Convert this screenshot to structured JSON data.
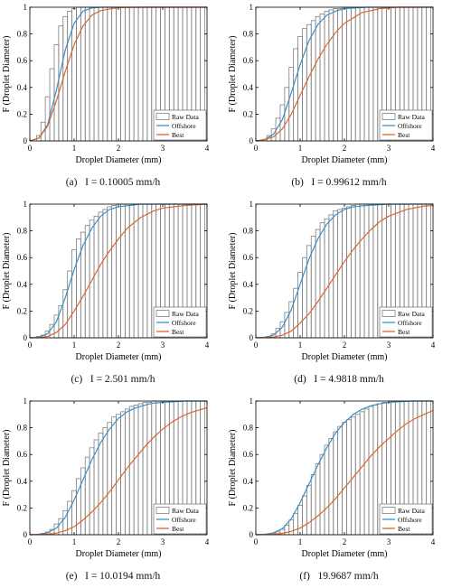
{
  "legend_labels": [
    "Raw Data",
    "Offshore",
    "Best"
  ],
  "colors": {
    "raw": "#808080",
    "offshore": "#3a8fc8",
    "best": "#e0632a",
    "axis": "#000000"
  },
  "chart_data": [
    {
      "type": "bar",
      "caption_letter": "(a)",
      "caption_text": "I = 0.10005 mm/h",
      "xlabel": "Droplet Diameter (mm)",
      "ylabel": "F (Droplet Diameter)",
      "xlim": [
        0,
        4
      ],
      "ylim": [
        0,
        1
      ],
      "xticks": [
        "0",
        "1",
        "2",
        "3",
        "4"
      ],
      "yticks": [
        "0",
        "0.2",
        "0.4",
        "0.6",
        "0.8",
        "1"
      ],
      "legend_position": "bottom-right",
      "grid": false,
      "raw": {
        "bin_width": 0.1,
        "x_start": 0.1,
        "values": [
          0.0,
          0.04,
          0.14,
          0.33,
          0.54,
          0.72,
          0.86,
          0.93,
          0.97,
          0.99,
          1.0,
          1.0,
          1.0,
          1.0,
          1.0,
          1.0,
          1.0,
          1.0,
          1.0,
          1.0,
          1.0,
          1.0,
          1.0,
          1.0,
          1.0,
          1.0,
          1.0,
          1.0,
          1.0,
          1.0,
          1.0,
          1.0,
          1.0,
          1.0,
          1.0,
          1.0,
          1.0,
          1.0,
          1.0
        ]
      },
      "series": [
        {
          "name": "Offshore",
          "x": [
            0.0,
            0.2,
            0.4,
            0.6,
            0.8,
            1.0,
            1.2,
            1.4,
            1.6,
            2.0,
            3.0,
            4.0
          ],
          "y": [
            0.0,
            0.02,
            0.12,
            0.38,
            0.68,
            0.88,
            0.97,
            0.995,
            1.0,
            1.0,
            1.0,
            1.0
          ]
        },
        {
          "name": "Best",
          "x": [
            0.0,
            0.2,
            0.4,
            0.6,
            0.8,
            1.0,
            1.2,
            1.4,
            1.6,
            2.0,
            2.5,
            3.0,
            4.0
          ],
          "y": [
            0.0,
            0.02,
            0.11,
            0.3,
            0.52,
            0.72,
            0.86,
            0.94,
            0.975,
            0.997,
            1.0,
            1.0,
            1.0
          ]
        }
      ]
    },
    {
      "type": "bar",
      "caption_letter": "(b)",
      "caption_text": "I = 0.99612 mm/h",
      "xlabel": "Droplet Diameter (mm)",
      "ylabel": "F (Droplet Diameter)",
      "xlim": [
        0,
        4
      ],
      "ylim": [
        0,
        1
      ],
      "xticks": [
        "0",
        "1",
        "2",
        "3",
        "4"
      ],
      "yticks": [
        "0",
        "0.2",
        "0.4",
        "0.6",
        "0.8",
        "1"
      ],
      "legend_position": "bottom-right",
      "grid": false,
      "raw": {
        "bin_width": 0.1,
        "x_start": 0.1,
        "values": [
          0.0,
          0.01,
          0.04,
          0.09,
          0.17,
          0.27,
          0.4,
          0.55,
          0.69,
          0.78,
          0.84,
          0.87,
          0.9,
          0.93,
          0.95,
          0.97,
          0.98,
          0.99,
          0.99,
          1.0,
          1.0,
          1.0,
          1.0,
          1.0,
          1.0,
          1.0,
          1.0,
          1.0,
          1.0,
          1.0,
          1.0,
          1.0,
          1.0,
          1.0,
          1.0,
          1.0,
          1.0,
          1.0,
          1.0
        ]
      },
      "series": [
        {
          "name": "Offshore",
          "x": [
            0.0,
            0.2,
            0.4,
            0.6,
            0.8,
            1.0,
            1.2,
            1.4,
            1.6,
            1.8,
            2.0,
            2.5,
            3.0,
            4.0
          ],
          "y": [
            0.0,
            0.01,
            0.05,
            0.16,
            0.36,
            0.57,
            0.75,
            0.87,
            0.94,
            0.97,
            0.99,
            1.0,
            1.0,
            1.0
          ]
        },
        {
          "name": "Best",
          "x": [
            0.0,
            0.2,
            0.4,
            0.6,
            0.8,
            1.0,
            1.2,
            1.4,
            1.6,
            1.8,
            2.0,
            2.4,
            2.8,
            3.2,
            4.0
          ],
          "y": [
            0.0,
            0.01,
            0.03,
            0.09,
            0.2,
            0.34,
            0.48,
            0.61,
            0.72,
            0.81,
            0.88,
            0.96,
            0.99,
            1.0,
            1.0
          ]
        }
      ]
    },
    {
      "type": "bar",
      "caption_letter": "(c)",
      "caption_text": "I = 2.501 mm/h",
      "xlabel": "Droplet Diameter (mm)",
      "ylabel": "F (Droplet Diameter)",
      "xlim": [
        0,
        4
      ],
      "ylim": [
        0,
        1
      ],
      "xticks": [
        "0",
        "1",
        "2",
        "3",
        "4"
      ],
      "yticks": [
        "0",
        "0.2",
        "0.4",
        "0.6",
        "0.8",
        "1"
      ],
      "legend_position": "bottom-right",
      "grid": false,
      "raw": {
        "bin_width": 0.1,
        "x_start": 0.1,
        "values": [
          0.0,
          0.01,
          0.02,
          0.05,
          0.1,
          0.17,
          0.24,
          0.36,
          0.5,
          0.66,
          0.74,
          0.79,
          0.84,
          0.88,
          0.91,
          0.94,
          0.96,
          0.98,
          0.99,
          1.0,
          1.0,
          1.0,
          1.0,
          1.0,
          1.0,
          1.0,
          1.0,
          1.0,
          1.0,
          1.0,
          1.0,
          1.0,
          1.0,
          1.0,
          1.0,
          1.0,
          1.0,
          1.0,
          1.0
        ]
      },
      "series": [
        {
          "name": "Offshore",
          "x": [
            0.0,
            0.2,
            0.4,
            0.6,
            0.8,
            1.0,
            1.2,
            1.4,
            1.6,
            1.8,
            2.0,
            2.5,
            3.0,
            4.0
          ],
          "y": [
            0.0,
            0.005,
            0.03,
            0.12,
            0.3,
            0.51,
            0.69,
            0.82,
            0.91,
            0.96,
            0.98,
            1.0,
            1.0,
            1.0
          ]
        },
        {
          "name": "Best",
          "x": [
            0.0,
            0.2,
            0.4,
            0.6,
            0.8,
            1.0,
            1.2,
            1.4,
            1.6,
            1.8,
            2.0,
            2.2,
            2.5,
            2.8,
            3.0,
            3.5,
            4.0
          ],
          "y": [
            0.0,
            0.002,
            0.01,
            0.04,
            0.1,
            0.2,
            0.31,
            0.43,
            0.55,
            0.65,
            0.74,
            0.82,
            0.9,
            0.95,
            0.97,
            0.99,
            1.0
          ]
        }
      ]
    },
    {
      "type": "bar",
      "caption_letter": "(d)",
      "caption_text": "I = 4.9818 mm/h",
      "xlabel": "Droplet Diameter (mm)",
      "ylabel": "F (Droplet Diameter)",
      "xlim": [
        0,
        4
      ],
      "ylim": [
        0,
        1
      ],
      "xticks": [
        "0",
        "1",
        "2",
        "3",
        "4"
      ],
      "yticks": [
        "0",
        "0.2",
        "0.4",
        "0.6",
        "0.8",
        "1"
      ],
      "legend_position": "bottom-right",
      "grid": false,
      "raw": {
        "bin_width": 0.1,
        "x_start": 0.1,
        "values": [
          0.0,
          0.0,
          0.01,
          0.03,
          0.07,
          0.12,
          0.19,
          0.27,
          0.37,
          0.49,
          0.6,
          0.69,
          0.76,
          0.81,
          0.86,
          0.89,
          0.92,
          0.95,
          0.96,
          0.97,
          0.98,
          0.99,
          1.0,
          1.0,
          1.0,
          1.0,
          1.0,
          1.0,
          1.0,
          1.0,
          1.0,
          1.0,
          1.0,
          1.0,
          1.0,
          1.0,
          1.0,
          1.0,
          1.0
        ]
      },
      "series": [
        {
          "name": "Offshore",
          "x": [
            0.0,
            0.2,
            0.4,
            0.6,
            0.8,
            1.0,
            1.2,
            1.4,
            1.6,
            1.8,
            2.0,
            2.2,
            2.5,
            3.0,
            4.0
          ],
          "y": [
            0.0,
            0.004,
            0.02,
            0.08,
            0.21,
            0.4,
            0.59,
            0.74,
            0.85,
            0.92,
            0.96,
            0.98,
            0.99,
            1.0,
            1.0
          ]
        },
        {
          "name": "Best",
          "x": [
            0.0,
            0.4,
            0.6,
            0.8,
            1.0,
            1.2,
            1.4,
            1.6,
            1.8,
            2.0,
            2.2,
            2.4,
            2.6,
            2.8,
            3.0,
            3.4,
            3.8,
            4.0
          ],
          "y": [
            0.0,
            0.005,
            0.02,
            0.05,
            0.11,
            0.18,
            0.27,
            0.37,
            0.47,
            0.57,
            0.66,
            0.74,
            0.81,
            0.87,
            0.91,
            0.96,
            0.985,
            0.99
          ]
        }
      ]
    },
    {
      "type": "bar",
      "caption_letter": "(e)",
      "caption_text": "I = 10.0194 mm/h",
      "xlabel": "Droplet Diameter (mm)",
      "ylabel": "F (Droplet Diameter)",
      "xlim": [
        0,
        4
      ],
      "ylim": [
        0,
        1
      ],
      "xticks": [
        "0",
        "1",
        "2",
        "3",
        "4"
      ],
      "yticks": [
        "0",
        "0.2",
        "0.4",
        "0.6",
        "0.8",
        "1"
      ],
      "legend_position": "bottom-right",
      "grid": false,
      "raw": {
        "bin_width": 0.1,
        "x_start": 0.1,
        "values": [
          0.0,
          0.0,
          0.01,
          0.02,
          0.04,
          0.08,
          0.12,
          0.18,
          0.25,
          0.33,
          0.42,
          0.5,
          0.58,
          0.65,
          0.71,
          0.76,
          0.8,
          0.84,
          0.88,
          0.9,
          0.92,
          0.94,
          0.96,
          0.97,
          0.98,
          0.99,
          0.99,
          1.0,
          1.0,
          1.0,
          1.0,
          1.0,
          1.0,
          1.0,
          1.0,
          1.0,
          1.0,
          1.0,
          1.0
        ]
      },
      "series": [
        {
          "name": "Offshore",
          "x": [
            0.0,
            0.2,
            0.4,
            0.6,
            0.8,
            1.0,
            1.2,
            1.4,
            1.6,
            1.8,
            2.0,
            2.2,
            2.4,
            2.6,
            2.8,
            3.0,
            3.5,
            4.0
          ],
          "y": [
            0.0,
            0.003,
            0.015,
            0.05,
            0.13,
            0.26,
            0.41,
            0.56,
            0.69,
            0.79,
            0.87,
            0.92,
            0.95,
            0.97,
            0.985,
            0.99,
            1.0,
            1.0
          ]
        },
        {
          "name": "Best",
          "x": [
            0.0,
            0.4,
            0.6,
            0.8,
            1.0,
            1.2,
            1.4,
            1.6,
            1.8,
            2.0,
            2.2,
            2.4,
            2.6,
            2.8,
            3.0,
            3.2,
            3.4,
            3.6,
            3.8,
            4.0
          ],
          "y": [
            0.0,
            0.004,
            0.012,
            0.03,
            0.06,
            0.11,
            0.17,
            0.24,
            0.32,
            0.41,
            0.5,
            0.58,
            0.66,
            0.73,
            0.79,
            0.84,
            0.88,
            0.91,
            0.93,
            0.95
          ]
        }
      ]
    },
    {
      "type": "bar",
      "caption_letter": "(f)",
      "caption_text": "19.9687 mm/h",
      "xlabel": "Droplet Diameter (mm)",
      "ylabel": "F (Droplet Diameter)",
      "xlim": [
        0,
        4
      ],
      "ylim": [
        0,
        1
      ],
      "xticks": [
        "0",
        "1",
        "2",
        "3",
        "4"
      ],
      "yticks": [
        "0",
        "0.2",
        "0.4",
        "0.6",
        "0.8",
        "1"
      ],
      "legend_position": "bottom-right",
      "grid": false,
      "raw": {
        "bin_width": 0.1,
        "x_start": 0.1,
        "values": [
          0.0,
          0.0,
          0.0,
          0.01,
          0.02,
          0.04,
          0.07,
          0.11,
          0.16,
          0.22,
          0.29,
          0.37,
          0.45,
          0.53,
          0.6,
          0.67,
          0.72,
          0.77,
          0.81,
          0.84,
          0.86,
          0.88,
          0.9,
          0.92,
          0.94,
          0.96,
          0.97,
          0.98,
          0.99,
          0.99,
          1.0,
          1.0,
          1.0,
          1.0,
          1.0,
          1.0,
          1.0,
          1.0,
          1.0
        ]
      },
      "series": [
        {
          "name": "Offshore",
          "x": [
            0.0,
            0.2,
            0.4,
            0.6,
            0.8,
            1.0,
            1.2,
            1.4,
            1.6,
            1.8,
            2.0,
            2.2,
            2.4,
            2.6,
            2.8,
            3.0,
            3.5,
            4.0
          ],
          "y": [
            0.0,
            0.003,
            0.014,
            0.045,
            0.12,
            0.24,
            0.38,
            0.52,
            0.65,
            0.76,
            0.84,
            0.9,
            0.94,
            0.965,
            0.98,
            0.99,
            1.0,
            1.0
          ]
        },
        {
          "name": "Best",
          "x": [
            0.0,
            0.4,
            0.6,
            0.8,
            1.0,
            1.2,
            1.4,
            1.6,
            1.8,
            2.0,
            2.2,
            2.4,
            2.6,
            2.8,
            3.0,
            3.2,
            3.4,
            3.6,
            3.8,
            4.0
          ],
          "y": [
            0.0,
            0.003,
            0.01,
            0.025,
            0.05,
            0.09,
            0.14,
            0.2,
            0.27,
            0.35,
            0.43,
            0.51,
            0.59,
            0.66,
            0.72,
            0.78,
            0.83,
            0.87,
            0.9,
            0.93
          ]
        }
      ]
    }
  ]
}
